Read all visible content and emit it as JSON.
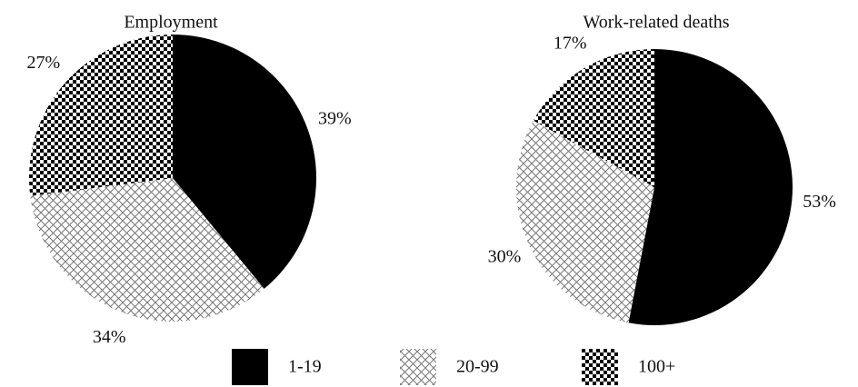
{
  "chart_data": [
    {
      "type": "pie",
      "title": "Employment",
      "categories": [
        "1-19",
        "20-99",
        "100+"
      ],
      "values": [
        39,
        34,
        27
      ],
      "value_labels": [
        "39%",
        "34%",
        "27%"
      ],
      "patterns": [
        "solid",
        "crosshatch",
        "checker"
      ]
    },
    {
      "type": "pie",
      "title": "Work-related deaths",
      "categories": [
        "1-19",
        "20-99",
        "100+"
      ],
      "values": [
        53,
        30,
        17
      ],
      "value_labels": [
        "53%",
        "30%",
        "17%"
      ],
      "patterns": [
        "solid",
        "crosshatch",
        "checker"
      ]
    }
  ]
}
